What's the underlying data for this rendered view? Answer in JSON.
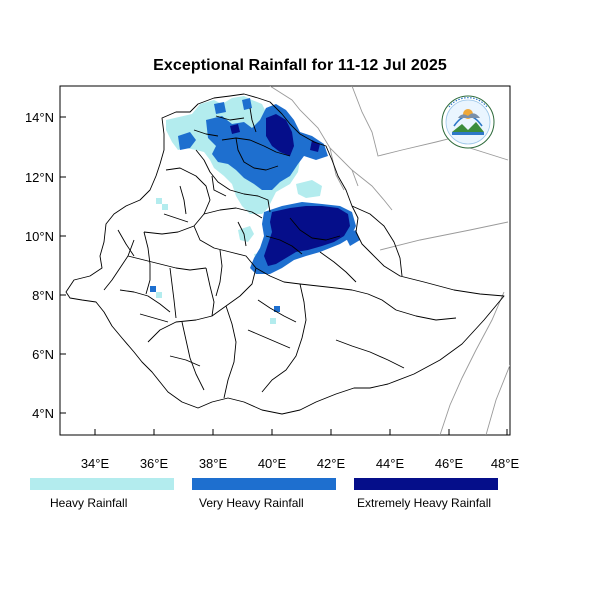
{
  "title": "Exceptional Rainfall for 11-12 Jul 2025",
  "axes": {
    "x_ticks": [
      "34°E",
      "36°E",
      "38°E",
      "40°E",
      "42°E",
      "44°E",
      "46°E",
      "48°E"
    ],
    "y_ticks": [
      "14°N",
      "12°N",
      "10°N",
      "8°N",
      "6°N",
      "4°N"
    ],
    "x_range": [
      32.8,
      48.2
    ],
    "y_range": [
      3.3,
      15.1
    ]
  },
  "legend": [
    {
      "label": "Heavy Rainfall",
      "color": "#b3ecee"
    },
    {
      "label": "Very Heavy Rainfall",
      "color": "#1e6fcf"
    },
    {
      "label": "Extremely Heavy Rainfall",
      "color": "#050e8a"
    }
  ],
  "logo": {
    "icon": "meteorology-institute-logo"
  },
  "colors": {
    "frame": "#000000",
    "border": "#000000",
    "neighbor_border": "#999999"
  }
}
